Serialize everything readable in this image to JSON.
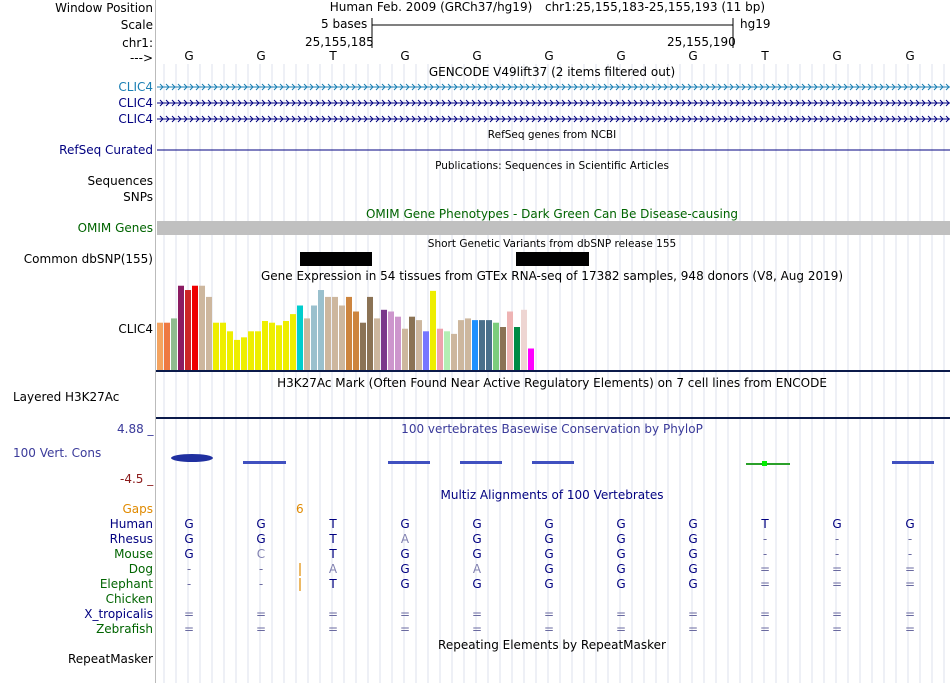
{
  "header": {
    "window_position_label": "Window Position",
    "scale_label": "Scale",
    "chr_label": "chr1:",
    "arrow_label": "--->",
    "assembly_title": "Human Feb. 2009 (GRCh37/hg19)",
    "position": "chr1:25,155,183-25,155,193 (11 bp)",
    "scale_text": "5 bases",
    "scale_db": "hg19",
    "coord_left": "25,155,185",
    "coord_right": "25,155,190",
    "bases": [
      "G",
      "G",
      "T",
      "G",
      "G",
      "G",
      "G",
      "G",
      "T",
      "G",
      "G"
    ]
  },
  "tracks": {
    "gencode_title": "GENCODE V49lift37 (2 items filtered out)",
    "gencode_items": [
      "CLIC4",
      "CLIC4",
      "CLIC4"
    ],
    "refseq_title": "RefSeq genes from NCBI",
    "refseq_label": "RefSeq Curated",
    "pubs_title": "Publications: Sequences in Scientific Articles",
    "sequences_label": "Sequences",
    "snps_label": "SNPs",
    "omim_title": "OMIM Gene Phenotypes - Dark Green Can Be Disease-causing",
    "omim_label": "OMIM Genes",
    "dbsnp_title": "Short Genetic Variants from dbSNP release 155",
    "dbsnp_label": "Common dbSNP(155)",
    "gtex_title": "Gene Expression in 54 tissues from GTEx RNA-seq of 17382 samples, 948 donors (V8, Aug 2019)",
    "gtex_label": "CLIC4",
    "h3k27_title": "H3K27Ac Mark (Often Found Near Active Regulatory Elements) on 7 cell lines from ENCODE",
    "h3k27_label": "Layered H3K27Ac",
    "phylop_title": "100 vertebrates Basewise Conservation by PhyloP",
    "phylop_label": "100 Vert. Cons",
    "phylop_max": "4.88 _",
    "phylop_min": "-4.5 _",
    "multiz_title": "Multiz Alignments of 100 Vertebrates",
    "gaps_label": "Gaps",
    "gap_count": "6",
    "repeat_title": "Repeating Elements by RepeatMasker",
    "repeat_label": "RepeatMasker"
  },
  "alignment": [
    {
      "species": "Human",
      "color": "#000080",
      "bases": [
        "G",
        "G",
        "T",
        "G",
        "G",
        "G",
        "G",
        "G",
        "T",
        "G",
        "G"
      ]
    },
    {
      "species": "Rhesus",
      "color": "#000080",
      "bases": [
        "G",
        "G",
        "T",
        "A",
        "G",
        "G",
        "G",
        "G",
        "-",
        "-",
        "-"
      ]
    },
    {
      "species": "Mouse",
      "color": "#006400",
      "bases": [
        "G",
        "C",
        "T",
        "G",
        "G",
        "G",
        "G",
        "G",
        "-",
        "-",
        "-"
      ]
    },
    {
      "species": "Dog",
      "color": "#006400",
      "bases": [
        "-",
        "-",
        "A",
        "G",
        "A",
        "G",
        "G",
        "G",
        "=",
        "=",
        "="
      ]
    },
    {
      "species": "Elephant",
      "color": "#006400",
      "bases": [
        "-",
        "-",
        "T",
        "G",
        "G",
        "G",
        "G",
        "G",
        "=",
        "=",
        "="
      ]
    },
    {
      "species": "Chicken",
      "color": "#006400",
      "bases": [
        "",
        "",
        "",
        "",
        "",
        "",
        "",
        "",
        "",
        "",
        ""
      ]
    },
    {
      "species": "X_tropicalis",
      "color": "#000080",
      "bases": [
        "=",
        "=",
        "=",
        "=",
        "=",
        "=",
        "=",
        "=",
        "=",
        "=",
        "="
      ]
    },
    {
      "species": "Zebrafish",
      "color": "#006400",
      "bases": [
        "=",
        "=",
        "=",
        "=",
        "=",
        "=",
        "=",
        "=",
        "=",
        "=",
        "="
      ]
    }
  ],
  "gtex_bars": [
    {
      "v": 0.55,
      "c": "#f4a460"
    },
    {
      "v": 0.55,
      "c": "#ee7942"
    },
    {
      "v": 0.6,
      "c": "#8fbc8f"
    },
    {
      "v": 0.98,
      "c": "#8b1c62"
    },
    {
      "v": 0.93,
      "c": "#cd2626"
    },
    {
      "v": 0.98,
      "c": "#ee0000"
    },
    {
      "v": 0.98,
      "c": "#cdb79e"
    },
    {
      "v": 0.85,
      "c": "#cdb79e"
    },
    {
      "v": 0.55,
      "c": "#eeee00"
    },
    {
      "v": 0.55,
      "c": "#eeee00"
    },
    {
      "v": 0.45,
      "c": "#eeee00"
    },
    {
      "v": 0.35,
      "c": "#eeee00"
    },
    {
      "v": 0.38,
      "c": "#eeee00"
    },
    {
      "v": 0.45,
      "c": "#eeee00"
    },
    {
      "v": 0.45,
      "c": "#eeee00"
    },
    {
      "v": 0.57,
      "c": "#eeee00"
    },
    {
      "v": 0.55,
      "c": "#eeee00"
    },
    {
      "v": 0.52,
      "c": "#eeee00"
    },
    {
      "v": 0.57,
      "c": "#eeee00"
    },
    {
      "v": 0.65,
      "c": "#eeee00"
    },
    {
      "v": 0.75,
      "c": "#00cdcd"
    },
    {
      "v": 0.6,
      "c": "#cdb79e"
    },
    {
      "v": 0.75,
      "c": "#9ac0cd"
    },
    {
      "v": 0.93,
      "c": "#9ac0cd"
    },
    {
      "v": 0.85,
      "c": "#cdb79e"
    },
    {
      "v": 0.85,
      "c": "#cdb79e"
    },
    {
      "v": 0.75,
      "c": "#cdb79e"
    },
    {
      "v": 0.85,
      "c": "#cd853f"
    },
    {
      "v": 0.68,
      "c": "#cd853f"
    },
    {
      "v": 0.55,
      "c": "#8b7355"
    },
    {
      "v": 0.85,
      "c": "#8b7355"
    },
    {
      "v": 0.6,
      "c": "#cdb79e"
    },
    {
      "v": 0.7,
      "c": "#7a378b"
    },
    {
      "v": 0.68,
      "c": "#cd96cd"
    },
    {
      "v": 0.62,
      "c": "#cd96cd"
    },
    {
      "v": 0.48,
      "c": "#cdb79e"
    },
    {
      "v": 0.62,
      "c": "#8b7355"
    },
    {
      "v": 0.58,
      "c": "#cdb79e"
    },
    {
      "v": 0.45,
      "c": "#7777ff"
    },
    {
      "v": 0.92,
      "c": "#eeee00"
    },
    {
      "v": 0.48,
      "c": "#eea2ad"
    },
    {
      "v": 0.45,
      "c": "#b4eeb4"
    },
    {
      "v": 0.42,
      "c": "#cdb79e"
    },
    {
      "v": 0.58,
      "c": "#cdb79e"
    },
    {
      "v": 0.6,
      "c": "#cdb79e"
    },
    {
      "v": 0.58,
      "c": "#1e90ff"
    },
    {
      "v": 0.58,
      "c": "#4a708b"
    },
    {
      "v": 0.58,
      "c": "#4a708b"
    },
    {
      "v": 0.55,
      "c": "#7ccd7c"
    },
    {
      "v": 0.5,
      "c": "#8b7355"
    },
    {
      "v": 0.68,
      "c": "#eeb4b4"
    },
    {
      "v": 0.5,
      "c": "#008b45"
    },
    {
      "v": 0.7,
      "c": "#eed5d2"
    },
    {
      "v": 0.25,
      "c": "#ff00ff"
    }
  ]
}
